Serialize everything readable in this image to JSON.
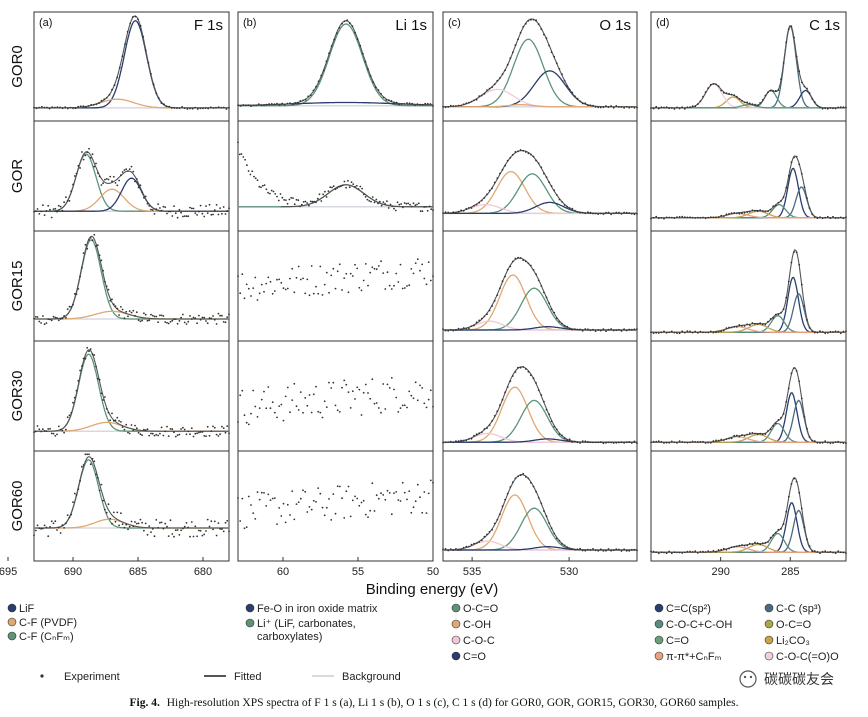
{
  "chart_data": {
    "type": "line",
    "x_axis_label": "Binding energy (eV)",
    "samples": [
      "GOR0",
      "GOR",
      "GOR15",
      "GOR30",
      "GOR60"
    ],
    "panels": [
      {
        "id": "a",
        "label": "(a)",
        "title": "F 1s",
        "xlim": [
          693,
          678
        ],
        "xticks": [
          695,
          690,
          685,
          680
        ],
        "show_ticks": [
          "695",
          "690",
          "685",
          "680"
        ],
        "components": [
          "LiF",
          "C-F (PVDF)",
          "C-F (CnFm)"
        ],
        "legend": [
          {
            "name": "LiF",
            "color": "#2a3d6e"
          },
          {
            "name": "C-F (PVDF)",
            "color": "#e0a872"
          },
          {
            "name": "C-F (CₙFₘ)",
            "color": "#5d9478"
          }
        ],
        "rows": [
          {
            "baseline": 0.12,
            "noise": 0.01,
            "peaks": [
              {
                "c": "LiF",
                "center": 685.2,
                "fwhm": 2.0,
                "amp": 0.8
              },
              {
                "c": "C-F (PVDF)",
                "center": 686.6,
                "fwhm": 3.0,
                "amp": 0.08
              }
            ]
          },
          {
            "baseline": 0.18,
            "noise": 0.06,
            "peaks": [
              {
                "c": "C-F (CnFm)",
                "center": 689.0,
                "fwhm": 1.8,
                "amp": 0.52
              },
              {
                "c": "C-F (PVDF)",
                "center": 687.0,
                "fwhm": 2.2,
                "amp": 0.2
              },
              {
                "c": "LiF",
                "center": 685.5,
                "fwhm": 1.8,
                "amp": 0.3
              }
            ]
          },
          {
            "baseline": 0.2,
            "noise": 0.05,
            "peaks": [
              {
                "c": "C-F (CnFm)",
                "center": 688.6,
                "fwhm": 1.8,
                "amp": 0.72
              },
              {
                "c": "C-F (PVDF)",
                "center": 687.0,
                "fwhm": 3.0,
                "amp": 0.07
              }
            ]
          },
          {
            "baseline": 0.18,
            "noise": 0.05,
            "peaks": [
              {
                "c": "C-F (CnFm)",
                "center": 688.8,
                "fwhm": 1.8,
                "amp": 0.7
              },
              {
                "c": "C-F (PVDF)",
                "center": 687.4,
                "fwhm": 2.8,
                "amp": 0.08
              }
            ]
          },
          {
            "baseline": 0.3,
            "noise": 0.08,
            "peaks": [
              {
                "c": "C-F (CnFm)",
                "center": 688.8,
                "fwhm": 1.8,
                "amp": 0.62
              },
              {
                "c": "C-F (PVDF)",
                "center": 687.2,
                "fwhm": 2.6,
                "amp": 0.08
              }
            ]
          }
        ]
      },
      {
        "id": "b",
        "label": "(b)",
        "title": "Li 1s",
        "xlim": [
          63,
          50
        ],
        "xticks": [
          60,
          55,
          50
        ],
        "show_ticks": [
          "60",
          "55",
          "50"
        ],
        "components": [
          "Fe-O in iron oxide matrix",
          "Li+ (LiF, carbonates, carboxylates)"
        ],
        "legend": [
          {
            "name": "Fe-O in iron oxide matrix",
            "color": "#2a3d6e"
          },
          {
            "name": "Li⁺ (LiF, carbonates,",
            "color": "#5d9478"
          },
          {
            "name": "carboxylates)",
            "color": ""
          }
        ],
        "rows": [
          {
            "baseline": 0.14,
            "noise": 0.01,
            "peaks": [
              {
                "c": "Li+",
                "center": 55.8,
                "fwhm": 2.6,
                "amp": 0.75
              },
              {
                "c": "Fe-O",
                "center": 55.8,
                "fwhm": 8,
                "amp": 0.03
              }
            ]
          },
          {
            "baseline": 0.22,
            "noise": 0.04,
            "peaks": [
              {
                "c": "Li+",
                "center": 55.8,
                "fwhm": 2.8,
                "amp": 0.2
              }
            ],
            "extra": "decay"
          },
          {
            "baseline": 0.55,
            "noise": 0.12,
            "peaks": [],
            "extra": "scatter"
          },
          {
            "baseline": 0.45,
            "noise": 0.14,
            "peaks": [],
            "extra": "scatter"
          },
          {
            "baseline": 0.5,
            "noise": 0.13,
            "peaks": [],
            "extra": "scatter"
          }
        ]
      },
      {
        "id": "c",
        "label": "(c)",
        "title": "O 1s",
        "xlim": [
          536.5,
          526.5
        ],
        "xticks": [
          535,
          530
        ],
        "show_ticks": [
          "535",
          "530"
        ],
        "components": [
          "O-C=O",
          "C-OH",
          "C-O-C",
          "C=O"
        ],
        "legend": [
          {
            "name": "O-C=O",
            "color": "#5d9478"
          },
          {
            "name": "C-OH",
            "color": "#e0a872"
          },
          {
            "name": "C-O-C",
            "color": "#f2c8d8"
          },
          {
            "name": "C=O",
            "color": "#2a3d6e"
          }
        ],
        "rows": [
          {
            "baseline": 0.13,
            "noise": 0.01,
            "peaks": [
              {
                "c": "O-C=O",
                "center": 532.1,
                "fwhm": 1.8,
                "amp": 0.62
              },
              {
                "c": "C=O",
                "center": 531.0,
                "fwhm": 1.9,
                "amp": 0.33
              },
              {
                "c": "C-O-C",
                "center": 533.7,
                "fwhm": 2.0,
                "amp": 0.16
              },
              {
                "c": "C-OH",
                "center": 532.5,
                "fwhm": 1.5,
                "amp": 0.02
              }
            ]
          },
          {
            "baseline": 0.16,
            "noise": 0.01,
            "peaks": [
              {
                "c": "C-OH",
                "center": 533.0,
                "fwhm": 1.7,
                "amp": 0.38
              },
              {
                "c": "O-C=O",
                "center": 531.9,
                "fwhm": 1.7,
                "amp": 0.36
              },
              {
                "c": "C-O-C",
                "center": 534.3,
                "fwhm": 1.8,
                "amp": 0.08
              },
              {
                "c": "C=O",
                "center": 531.0,
                "fwhm": 1.7,
                "amp": 0.1
              }
            ]
          },
          {
            "baseline": 0.1,
            "noise": 0.01,
            "peaks": [
              {
                "c": "C-OH",
                "center": 532.9,
                "fwhm": 1.6,
                "amp": 0.5
              },
              {
                "c": "O-C=O",
                "center": 531.8,
                "fwhm": 1.6,
                "amp": 0.38
              },
              {
                "c": "C-O-C",
                "center": 534.1,
                "fwhm": 1.6,
                "amp": 0.08
              },
              {
                "c": "C=O",
                "center": 531.1,
                "fwhm": 1.6,
                "amp": 0.03
              }
            ]
          },
          {
            "baseline": 0.08,
            "noise": 0.01,
            "peaks": [
              {
                "c": "C-OH",
                "center": 532.8,
                "fwhm": 1.6,
                "amp": 0.5
              },
              {
                "c": "O-C=O",
                "center": 531.8,
                "fwhm": 1.6,
                "amp": 0.38
              },
              {
                "c": "C-O-C",
                "center": 534.2,
                "fwhm": 1.6,
                "amp": 0.08
              },
              {
                "c": "C=O",
                "center": 531.1,
                "fwhm": 1.6,
                "amp": 0.03
              }
            ]
          },
          {
            "baseline": 0.1,
            "noise": 0.01,
            "peaks": [
              {
                "c": "C-OH",
                "center": 532.8,
                "fwhm": 1.6,
                "amp": 0.5
              },
              {
                "c": "O-C=O",
                "center": 531.8,
                "fwhm": 1.6,
                "amp": 0.38
              },
              {
                "c": "C-O-C",
                "center": 534.2,
                "fwhm": 1.6,
                "amp": 0.08
              },
              {
                "c": "C=O",
                "center": 531.1,
                "fwhm": 1.6,
                "amp": 0.03
              }
            ]
          }
        ]
      },
      {
        "id": "d",
        "label": "(d)",
        "title": "C 1s",
        "xlim": [
          295,
          281
        ],
        "xticks": [
          290,
          285
        ],
        "show_ticks": [
          "290",
          "285"
        ],
        "components": [
          "C=C(sp2)",
          "C-C (sp3)",
          "C-O-C+C-OH",
          "O-C=O",
          "C=O",
          "Li2CO3",
          "pi-pi*+CnFm",
          "C-O-C(=O)O"
        ],
        "legend": [
          {
            "name": "C=C(sp²)",
            "color": "#2a3d6e"
          },
          {
            "name": "C-C (sp³)",
            "color": "#4b6b80"
          },
          {
            "name": "C-O-C+C-OH",
            "color": "#5a8c7e"
          },
          {
            "name": "O-C=O",
            "color": "#a8a848"
          },
          {
            "name": "C=O",
            "color": "#6a9e7a"
          },
          {
            "name": "Li₂CO₃",
            "color": "#c9a24a"
          },
          {
            "name": "π-π*+CₙFₘ",
            "color": "#e8a080"
          },
          {
            "name": "C-O-C(=O)O",
            "color": "#f0cfe0"
          }
        ],
        "rows": [
          {
            "baseline": 0.12,
            "noise": 0.01,
            "peaks": [
              {
                "c": "C-C",
                "center": 285.0,
                "fwhm": 1.0,
                "amp": 0.75
              },
              {
                "c": "C=C",
                "center": 283.9,
                "fwhm": 1.0,
                "amp": 0.16
              },
              {
                "c": "C-O-C+C-OH",
                "center": 286.4,
                "fwhm": 1.0,
                "amp": 0.16
              },
              {
                "c": "Li2CO3",
                "center": 289.1,
                "fwhm": 1.2,
                "amp": 0.1
              },
              {
                "c": "C-O-C(=O)O",
                "center": 290.5,
                "fwhm": 1.4,
                "amp": 0.22
              },
              {
                "c": "O-C=O",
                "center": 288.0,
                "fwhm": 1.2,
                "amp": 0.03
              }
            ]
          },
          {
            "baseline": 0.12,
            "noise": 0.01,
            "peaks": [
              {
                "c": "C=C",
                "center": 284.8,
                "fwhm": 0.9,
                "amp": 0.45
              },
              {
                "c": "C-C",
                "center": 284.2,
                "fwhm": 0.9,
                "amp": 0.28
              },
              {
                "c": "C-O-C+C-OH",
                "center": 285.8,
                "fwhm": 1.1,
                "amp": 0.12
              },
              {
                "c": "Li2CO3",
                "center": 287.3,
                "fwhm": 1.6,
                "amp": 0.06
              },
              {
                "c": "pi-pi*",
                "center": 288.8,
                "fwhm": 1.8,
                "amp": 0.04
              }
            ]
          },
          {
            "baseline": 0.08,
            "noise": 0.01,
            "peaks": [
              {
                "c": "C=C",
                "center": 284.8,
                "fwhm": 0.9,
                "amp": 0.5
              },
              {
                "c": "C-C",
                "center": 284.4,
                "fwhm": 0.9,
                "amp": 0.35
              },
              {
                "c": "C-O-C+C-OH",
                "center": 285.9,
                "fwhm": 1.1,
                "amp": 0.15
              },
              {
                "c": "Li2CO3",
                "center": 287.3,
                "fwhm": 1.6,
                "amp": 0.07
              },
              {
                "c": "pi-pi*",
                "center": 288.8,
                "fwhm": 1.8,
                "amp": 0.05
              }
            ]
          },
          {
            "baseline": 0.08,
            "noise": 0.01,
            "peaks": [
              {
                "c": "C=C",
                "center": 284.9,
                "fwhm": 0.9,
                "amp": 0.45
              },
              {
                "c": "C-C",
                "center": 284.4,
                "fwhm": 0.9,
                "amp": 0.38
              },
              {
                "c": "C-O-C+C-OH",
                "center": 285.9,
                "fwhm": 1.1,
                "amp": 0.17
              },
              {
                "c": "Li2CO3",
                "center": 287.3,
                "fwhm": 1.6,
                "amp": 0.07
              },
              {
                "c": "pi-pi*",
                "center": 288.8,
                "fwhm": 1.8,
                "amp": 0.05
              }
            ]
          },
          {
            "baseline": 0.08,
            "noise": 0.01,
            "peaks": [
              {
                "c": "C=C",
                "center": 284.9,
                "fwhm": 0.9,
                "amp": 0.45
              },
              {
                "c": "C-C",
                "center": 284.4,
                "fwhm": 0.9,
                "amp": 0.38
              },
              {
                "c": "C-O-C+C-OH",
                "center": 285.9,
                "fwhm": 1.1,
                "amp": 0.17
              },
              {
                "c": "Li2CO3",
                "center": 287.3,
                "fwhm": 1.6,
                "amp": 0.07
              },
              {
                "c": "pi-pi*",
                "center": 288.8,
                "fwhm": 1.8,
                "amp": 0.05
              }
            ]
          }
        ]
      }
    ],
    "component_colors": {
      "LiF": "#2a3d6e",
      "C-F (PVDF)": "#e0a872",
      "C-F (CnFm)": "#5d9478",
      "Fe-O": "#2a3d6e",
      "Li+": "#5d9478",
      "O-C=O": "#5d9478",
      "C-OH": "#e0a872",
      "C-O-C": "#f2c8d8",
      "C=O": "#2a3d6e",
      "C=C": "#2a3d6e",
      "C-C": "#4b6b80",
      "C-O-C+C-OH": "#5a8c7e",
      "Li2CO3": "#c9a24a",
      "pi-pi*": "#e8a080",
      "C-O-C(=O)O": "#f0cfe0"
    },
    "line_legend": [
      {
        "name": "Experiment",
        "style": "dot"
      },
      {
        "name": "Fitted",
        "style": "line"
      },
      {
        "name": "Background",
        "style": "light"
      }
    ]
  },
  "caption": {
    "bold": "Fig. 4.",
    "text": "High-resolution XPS spectra of F 1 s (a), Li 1 s (b), O 1 s (c), C 1 s (d) for GOR0, GOR, GOR15, GOR30, GOR60 samples."
  },
  "watermark": "碳碳碳友会",
  "colors": {
    "fitted": "#555555",
    "background": "#d8d8e0",
    "dots": "#333333"
  }
}
